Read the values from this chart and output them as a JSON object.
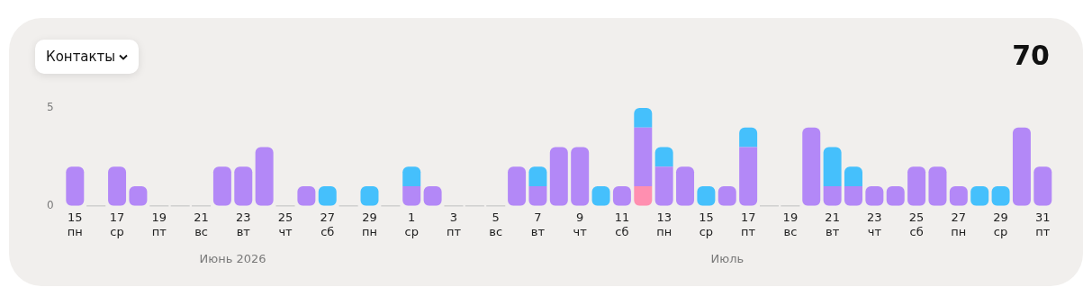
{
  "chart_data": {
    "type": "bar",
    "title": "Контакты",
    "subtitle": "70",
    "stacked": true,
    "grid": false,
    "legend": false,
    "categories": [
      "15\nпн",
      null,
      "17\nср",
      null,
      "19\nпт",
      null,
      "21\nвс",
      null,
      "23\nвт",
      null,
      "25\nчт",
      null,
      "27\nсб",
      null,
      "29\nпн",
      null,
      "1\nср",
      null,
      "3\nпт",
      null,
      "5\nвс",
      null,
      "7\nвт",
      null,
      "9\nчт",
      null,
      "11\nсб",
      null,
      "13\nпн",
      null,
      "15\nср",
      null,
      "17\nпт",
      null,
      "19\nвс",
      null,
      "21\nвт",
      null,
      "23\nчт",
      null,
      "25\nсб",
      null,
      "27\nпн",
      null,
      "29\nср",
      null,
      "31\nпт"
    ],
    "series": [
      {
        "color": "#ff8fb0",
        "values": [
          0,
          0,
          0,
          0,
          0,
          0,
          0,
          0,
          0,
          0,
          0,
          0,
          0,
          0,
          0,
          0,
          0,
          0,
          0,
          0,
          0,
          0,
          0,
          0,
          0,
          0,
          0,
          1,
          0,
          0,
          0,
          0,
          0,
          0,
          0,
          0,
          0,
          0,
          0,
          0,
          0,
          0,
          0,
          0,
          0,
          0,
          0
        ]
      },
      {
        "color": "#b388f7",
        "values": [
          2,
          0,
          2,
          1,
          0,
          0,
          0,
          2,
          2,
          3,
          0,
          1,
          0,
          0,
          0,
          0,
          1,
          1,
          0,
          0,
          0,
          2,
          1,
          3,
          3,
          0,
          1,
          3,
          2,
          2,
          0,
          1,
          3,
          0,
          0,
          4,
          1,
          1,
          1,
          1,
          2,
          2,
          1,
          0,
          0,
          4,
          2
        ]
      },
      {
        "color": "#45c0fc",
        "values": [
          0,
          0,
          0,
          0,
          0,
          0,
          0,
          0,
          0,
          0,
          0,
          0,
          1,
          0,
          1,
          0,
          1,
          0,
          0,
          0,
          0,
          0,
          1,
          0,
          0,
          1,
          0,
          1,
          1,
          0,
          1,
          0,
          1,
          0,
          0,
          0,
          2,
          1,
          0,
          0,
          0,
          0,
          0,
          1,
          1,
          0,
          0
        ]
      }
    ],
    "ylim": [
      0,
      5
    ],
    "yticks": [
      0,
      5
    ],
    "annotations": [
      "Июнь 2026",
      "Июль"
    ]
  }
}
